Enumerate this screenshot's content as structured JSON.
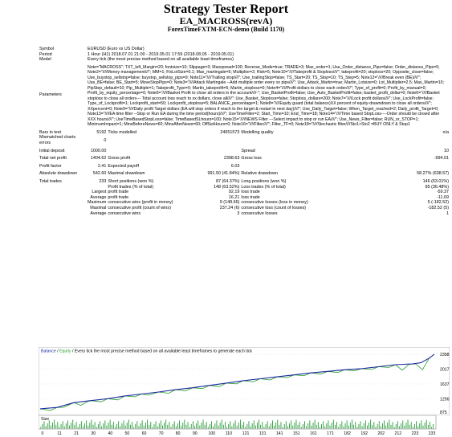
{
  "header": {
    "title": "Strategy Tester Report",
    "ea_name": "EA_MACROSS(revA)",
    "server": "ForexTimeFXTM-ECN-demo (Build 1170)"
  },
  "info": {
    "symbol_label": "Symbol",
    "symbol_value": "EURUSD (Euro vs US Dollar)",
    "period_label": "Period",
    "period_value": "1 Hour (H1) 2018.07.01 21:00 - 2019.05.01 17:59 (2018.08.05 - 2019.05.01)",
    "model_label": "Model",
    "model_value": "Every tick (the most precise method based on all available least timeframes)",
    "params_label": "Parameters",
    "params_value": "Note=\"MACROSS\"; TXT_left_Margin=20; fontsize=10; Slippage=3; Maxspread=100; Reverse_Mode=true; TRADE=3; Max_order=1; Use_Order_distance_Pips=false; Order_distance_Pips=5; Note2=\"////Money management///\"; MM=1; FixLotSize=0.1; Max_martingale=5; Multiplier=2; Risk=5; Note10=\"////Takeprofit & Stoploss////\"; takeprofit=20; stoploss=20; Opposite_close=false; Use_buystop_sellstop=false; buystop_sellstop_pips=9; Note11=\"////Trailing stop////\"; Use_trailingStop=false; TS_Start=20; TS_Stop=10; TS_Step=5; Note12=\"////Break even (BE)////\"; Use_BE=false; BE_Start=5; MoveStopPips=0; Note3=\"////Attack Martingale --Add multiple order every xx pips////\"; Use_Attack_Martin=true; Martin_Lotsize=0; Lot_Multiplier=2.5; Max_Martin=10; PipStep_default=10; Pip_Multiple=1; Takeprofit_Type=0; Martin_takeprofit=5; Martin_stoploss=0; Note4=\"////Profit dollars to close each order////\"; Type_of_profit=0; Profit_by_manual=0; Profit_by_equity_percentage=0; Note5=\"////Basket Profit to close all orders in the account////-\"; Use_BasketProfit=false; Use_Auto_BasketProfit=false; basket_profit_dollar=0; Note6=\"////Basket stoploss to close all orders--- Total account loss reach to xx dollars, close all////\"; Use_Basket_Stoploss=false; Stoploss_dollars=200; Note7=\"////Lock profit dollars////\"; Use_LockProfit=false; Type_of_Lockprofit=1; Lockprofit_start=50; Lockprofit_stoploss=5; BALANCE_percentage=1; Note8=\"////Equity guard (total balance)XX percent of equity-drawndown to close all orders////\"; XXpercent=0; Note9=\"////Daily profit Target dollars (EA will stop orders if reach to the target & restart in next day)////\"; Use_Daily_Target=false; When_Target_reached=2; Daily_profit_Target=0; Note13=\"////EA time filter --Stop or Run EA during the time period(hours)////\"; UseTimeFilter=2; Start_Time=10; End_Time=18; Note14=\"////Time based StopLoss----Order should be closed after XXX hours////\"; UseTimeBasedStopLoss=false; TimeBasedSLhours=100; Note15=\"////NEWS Filter ---Select impact to stop or run EA////\"; Use_News_Filter=false; RUN_or_STOP=1; MinimumImpact=1; MinsBeforeNews=60; MinsAfterNews=60; OffSetHours=0; Note16=\"////Filter////\"; Filter_TF=0; Note18=\"////Stochastic filter////Sto1>Sto2 =BUY ONLY & Stop1",
    "bars_label": "Bars in test",
    "bars_value": "5192",
    "ticks_label": "Ticks modelled",
    "ticks_value": "24651573",
    "mq_label": "Modelling quality",
    "mq_value": "n/a",
    "mismatch_label": "Mismatched charts errors",
    "mismatch_value": "0",
    "deposit_label": "Initial deposit",
    "deposit_value": "1000.00",
    "spread_label": "Spread",
    "spread_value": "10"
  },
  "stats": {
    "net_label": "Total net profit",
    "net_value": "1404.62",
    "gp_label": "Gross profit",
    "gp_value": "2398.63",
    "gl_label": "Gross loss",
    "gl_value": "-994.01",
    "pf_label": "Profit factor",
    "pf_value": "2.41",
    "ep_label": "Expected payoff",
    "ep_value": "6.03",
    "abs_label": "Absolute drawdown",
    "abs_value": "542.60",
    "mdd_label": "Maximal drawdown",
    "mdd_value": "991.50 (41.84%)",
    "rdd_label": "Relative drawdown",
    "rdd_value": "58.27% (638.57)",
    "tt_label": "Total trades",
    "tt_value": "233",
    "sp_label": "Short positions (won %)",
    "sp_value": "87 (64.37%)",
    "lp_label": "Long positions (won %)",
    "lp_value": "146 (63.01%)",
    "pt_label": "Profit trades (% of total)",
    "pt_value": "148 (63.52%)",
    "lt_label": "Loss trades (% of total)",
    "lt_value": "85 (36.48%)",
    "largest_label": "Largest",
    "lpt_label": "profit trade",
    "lpt_value": "92.19",
    "llt_label": "loss trade",
    "llt_value": "-59.37",
    "average_label": "Average",
    "apt_label": "profit trade",
    "apt_value": "16.21",
    "alt_label": "loss trade",
    "alt_value": "-11.69",
    "maximum_label": "Maximum",
    "mcw_label": "consecutive wins (profit in money)",
    "mcw_value": "9 (148.66)",
    "mcl_label": "consecutive losses (loss in money)",
    "mcl_value": "5 (-182.52)",
    "maximal_label": "Maximal",
    "mcp_label": "consecutive profit (count of wins)",
    "mcp_value": "237.24 (6)",
    "mcls_label": "consecutive loss (count of losses)",
    "mcls_value": "-182.52 (5)",
    "average2_label": "Average",
    "acw_label": "consecutive wins",
    "acw_value": "3",
    "acl_label": "consecutive losses",
    "acl_value": "1"
  },
  "chart": {
    "legend_balance": "Balance",
    "legend_sep": " / ",
    "legend_equity": "Equity",
    "legend_rest": " / Every tick  the most precise method based on all available least timeframes to generate each tick",
    "size_label": "Size",
    "balance_color": "#1c2a9e",
    "equity_color": "#22a02b",
    "volume_color": "#2a9d3a"
  },
  "chart_data": {
    "type": "line",
    "title": "",
    "ylim": [
      875,
      2398
    ],
    "yticks": [
      "2398",
      "2017",
      "1637",
      "1256",
      "875"
    ],
    "xticks": [
      "0",
      "11",
      "21",
      "30",
      "40",
      "50",
      "60",
      "70",
      "80",
      "90",
      "100",
      "110",
      "121",
      "131",
      "141",
      "151",
      "161",
      "171",
      "182",
      "192",
      "202",
      "212",
      "223",
      "233"
    ],
    "series": [
      {
        "name": "Balance",
        "x": [
          0,
          10,
          20,
          30,
          40,
          50,
          60,
          70,
          80,
          90,
          100,
          110,
          120,
          130,
          140,
          150,
          160,
          170,
          180,
          190,
          200,
          210,
          215,
          220,
          225,
          230,
          233
        ],
        "values": [
          1000,
          1035,
          1160,
          1210,
          1260,
          1330,
          1380,
          1430,
          1490,
          1540,
          1600,
          1660,
          1720,
          1770,
          1820,
          1870,
          1920,
          1960,
          2000,
          2030,
          2080,
          2130,
          2140,
          2150,
          2180,
          2300,
          2398
        ]
      },
      {
        "name": "Equity",
        "x": [
          0,
          6,
          10,
          14,
          20,
          24,
          28,
          30,
          36,
          40,
          46,
          50,
          56,
          60,
          64,
          70,
          76,
          80,
          86,
          90,
          96,
          100,
          106,
          110,
          116,
          120,
          126,
          130,
          136,
          140,
          146,
          150,
          156,
          160,
          166,
          170,
          176,
          180,
          186,
          190,
          196,
          200,
          206,
          210,
          214,
          218,
          222,
          226,
          230,
          233
        ],
        "values": [
          1000,
          960,
          1035,
          1040,
          1160,
          1090,
          1185,
          1210,
          1180,
          1260,
          1230,
          1330,
          1310,
          1380,
          1350,
          1430,
          1400,
          1490,
          1460,
          1540,
          1520,
          1600,
          1570,
          1660,
          1640,
          1720,
          1690,
          1770,
          1740,
          1820,
          1800,
          1870,
          1850,
          1920,
          1890,
          1960,
          1930,
          2000,
          1975,
          2030,
          2010,
          2080,
          2060,
          2130,
          1990,
          2140,
          2150,
          2000,
          2300,
          2398
        ]
      }
    ],
    "volume_note": "Size"
  }
}
